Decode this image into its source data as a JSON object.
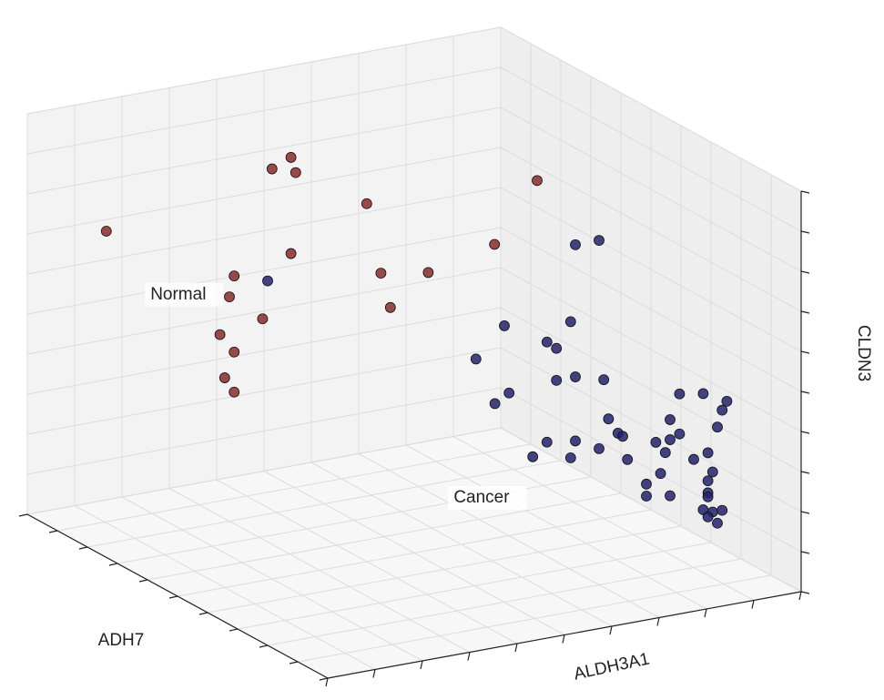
{
  "chart_data": {
    "type": "scatter3d",
    "xlabel": "ADH7",
    "ylabel": "ALDH3A1",
    "zlabel": "CLDN3",
    "xlim": [
      0,
      10
    ],
    "ylim": [
      0,
      10
    ],
    "zlim": [
      0,
      10
    ],
    "xticks": [
      0,
      1,
      2,
      3,
      4,
      5,
      6,
      7,
      8,
      9,
      10
    ],
    "yticks": [
      0,
      1,
      2,
      3,
      4,
      5,
      6,
      7,
      8,
      9,
      10
    ],
    "zticks": [
      0,
      1,
      2,
      3,
      4,
      5,
      6,
      7,
      8,
      9,
      10
    ],
    "grid": true,
    "series": [
      {
        "name": "Normal",
        "color": "#8a2a2a",
        "x": [
          2,
          2,
          2,
          2,
          2,
          2,
          2,
          2,
          2,
          2,
          2,
          2,
          2,
          2,
          2,
          2,
          2,
          2
        ],
        "y": [
          0.4,
          3.9,
          4.3,
          4.4,
          5.9,
          4.3,
          3.1,
          3.0,
          3.7,
          2.8,
          3.1,
          2.9,
          3.1,
          6.2,
          7.2,
          6.4,
          8.6,
          9.5
        ],
        "z": [
          7.8,
          8.6,
          8.8,
          8.4,
          7.3,
          6.4,
          6.1,
          5.6,
          4.9,
          4.7,
          4.2,
          3.6,
          3.2,
          5.5,
          5.3,
          4.6,
          5.7,
          7.1
        ]
      },
      {
        "name": "Cancer",
        "color": "#22226e",
        "x": [
          8,
          8,
          8,
          8,
          8,
          8,
          8,
          8,
          8,
          8,
          8,
          8,
          8,
          8,
          8,
          8,
          8,
          8,
          8,
          8,
          8,
          8,
          8,
          8,
          8,
          8,
          8,
          8,
          8,
          8,
          8,
          8,
          8,
          8,
          8,
          8,
          8,
          8,
          8,
          8,
          8,
          8,
          8,
          8,
          8,
          8,
          8
        ],
        "y": [
          0.0,
          6.5,
          7.0,
          5.0,
          6.4,
          5.9,
          6.1,
          4.4,
          6.5,
          6.1,
          7.1,
          5.1,
          4.8,
          8.7,
          9.2,
          9.7,
          9.6,
          8.5,
          9.5,
          7.4,
          7.5,
          7.2,
          8.7,
          8.5,
          8.2,
          8.4,
          6.5,
          5.9,
          7.0,
          6.4,
          5.6,
          7.6,
          9.0,
          9.3,
          9.4,
          8.3,
          8.0,
          8.5,
          9.3,
          9.3,
          9.3,
          9.2,
          9.4,
          9.6,
          9.5,
          8.0,
          9.3
        ],
        "z": [
          9.1,
          8.6,
          8.6,
          6.9,
          6.7,
          6.3,
          6.1,
          6.2,
          5.3,
          5.3,
          5.1,
          5.2,
          5.0,
          4.4,
          4.3,
          4.0,
          3.8,
          3.8,
          3.4,
          3.7,
          3.6,
          4.1,
          3.4,
          3.3,
          3.3,
          3.0,
          3.7,
          3.8,
          3.4,
          3.3,
          3.5,
          3.0,
          2.7,
          2.8,
          2.3,
          2.5,
          2.3,
          1.9,
          2.1,
          1.8,
          1.7,
          1.4,
          1.3,
          1.3,
          1.0,
          2.0,
          1.2
        ]
      }
    ]
  }
}
